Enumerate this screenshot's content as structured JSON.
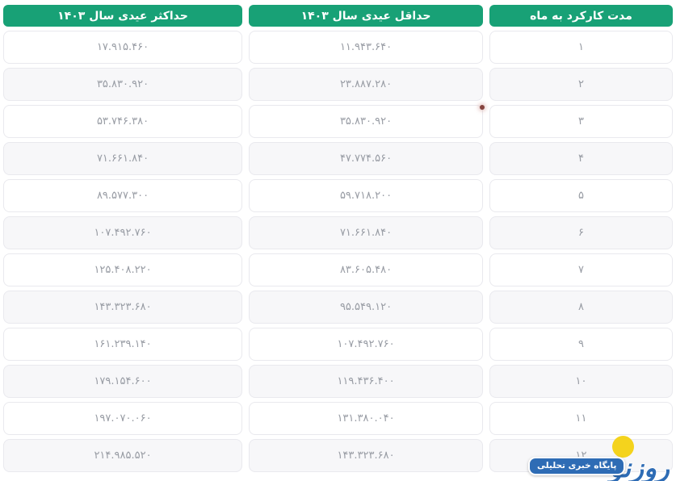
{
  "table": {
    "columns": [
      {
        "label": "مدت کارکرد به ماه"
      },
      {
        "label": "حداقل عیدی سال ۱۴۰۳"
      },
      {
        "label": "حداکثر عیدی سال ۱۴۰۳"
      }
    ],
    "rows": [
      {
        "month": "۱",
        "min": "۱۱.۹۴۳.۶۴۰",
        "max": "۱۷.۹۱۵.۴۶۰"
      },
      {
        "month": "۲",
        "min": "۲۳.۸۸۷.۲۸۰",
        "max": "۳۵.۸۳۰.۹۲۰"
      },
      {
        "month": "۳",
        "min": "۳۵.۸۳۰.۹۲۰",
        "max": "۵۳.۷۴۶.۳۸۰"
      },
      {
        "month": "۴",
        "min": "۴۷.۷۷۴.۵۶۰",
        "max": "۷۱.۶۶۱.۸۴۰"
      },
      {
        "month": "۵",
        "min": "۵۹.۷۱۸.۲۰۰",
        "max": "۸۹.۵۷۷.۳۰۰"
      },
      {
        "month": "۶",
        "min": "۷۱.۶۶۱.۸۴۰",
        "max": "۱۰۷.۴۹۲.۷۶۰"
      },
      {
        "month": "۷",
        "min": "۸۳.۶۰۵.۴۸۰",
        "max": "۱۲۵.۴۰۸.۲۲۰"
      },
      {
        "month": "۸",
        "min": "۹۵.۵۴۹.۱۲۰",
        "max": "۱۴۳.۳۲۳.۶۸۰"
      },
      {
        "month": "۹",
        "min": "۱۰۷.۴۹۲.۷۶۰",
        "max": "۱۶۱.۲۳۹.۱۴۰"
      },
      {
        "month": "۱۰",
        "min": "۱۱۹.۴۳۶.۴۰۰",
        "max": "۱۷۹.۱۵۴.۶۰۰"
      },
      {
        "month": "۱۱",
        "min": "۱۳۱.۳۸۰.۰۴۰",
        "max": "۱۹۷.۰۷۰.۰۶۰"
      },
      {
        "month": "۱۲",
        "min": "۱۴۳.۳۲۳.۶۸۰",
        "max": "۲۱۴.۹۸۵.۵۲۰"
      }
    ]
  },
  "chart_data": {
    "type": "table",
    "title": "",
    "columns": [
      "مدت کارکرد به ماه",
      "حداقل عیدی سال ۱۴۰۳",
      "حداکثر عیدی سال ۱۴۰۳"
    ],
    "rows": [
      [
        1,
        11943640,
        17915460
      ],
      [
        2,
        23887280,
        35830920
      ],
      [
        3,
        35830920,
        53746380
      ],
      [
        4,
        47774560,
        71661840
      ],
      [
        5,
        59718200,
        89577300
      ],
      [
        6,
        71661840,
        107492760
      ],
      [
        7,
        83605480,
        125408220
      ],
      [
        8,
        95549120,
        143323680
      ],
      [
        9,
        107492760,
        161239140
      ],
      [
        10,
        119436400,
        179154600
      ],
      [
        11,
        131380040,
        197070060
      ],
      [
        12,
        143323680,
        214985520
      ]
    ],
    "layout": {
      "direction": "rtl",
      "header_style": "green-pill",
      "row_striping": true
    }
  },
  "watermark": {
    "logo_text": "روزنو",
    "tagline": "پایگاه خبری تحلیلی"
  },
  "colors": {
    "header_bg": "#18a176",
    "header_text": "#ffffff",
    "row_bg": "#ffffff",
    "row_alt_bg": "#f7f7f9",
    "cell_border": "#e9e9ee",
    "cell_text": "#989ca4",
    "artifact_dot": "#86443f",
    "logo_blue": "#2e6cb5",
    "logo_yellow": "#f4d31d"
  }
}
